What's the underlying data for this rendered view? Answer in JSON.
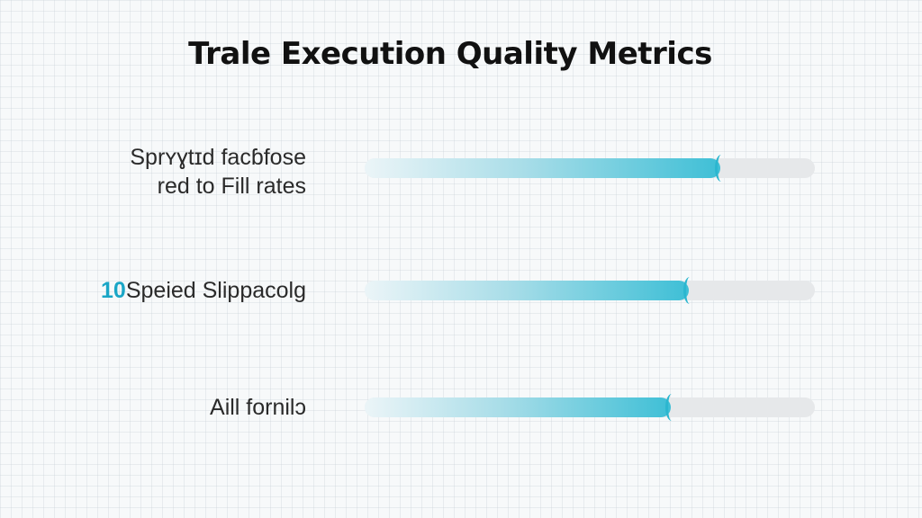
{
  "chart_data": {
    "type": "bar",
    "orientation": "horizontal",
    "title": "Trale Execution Quality Metrics",
    "categories": [
      {
        "lines": [
          "Sprʏɣtɪd facɓfose",
          "red to Fill rates"
        ],
        "badge": ""
      },
      {
        "lines": [
          "Speied Slippacolg"
        ],
        "badge": "10"
      },
      {
        "lines": [
          "Aill fornilɔ"
        ],
        "badge": ""
      }
    ],
    "values": [
      0.79,
      0.72,
      0.68
    ],
    "xlim": [
      0,
      1
    ],
    "xlabel": "",
    "ylabel": "",
    "grid": false,
    "colors": {
      "fill": "#3ebfd6",
      "track": "#e6e8ea"
    }
  }
}
